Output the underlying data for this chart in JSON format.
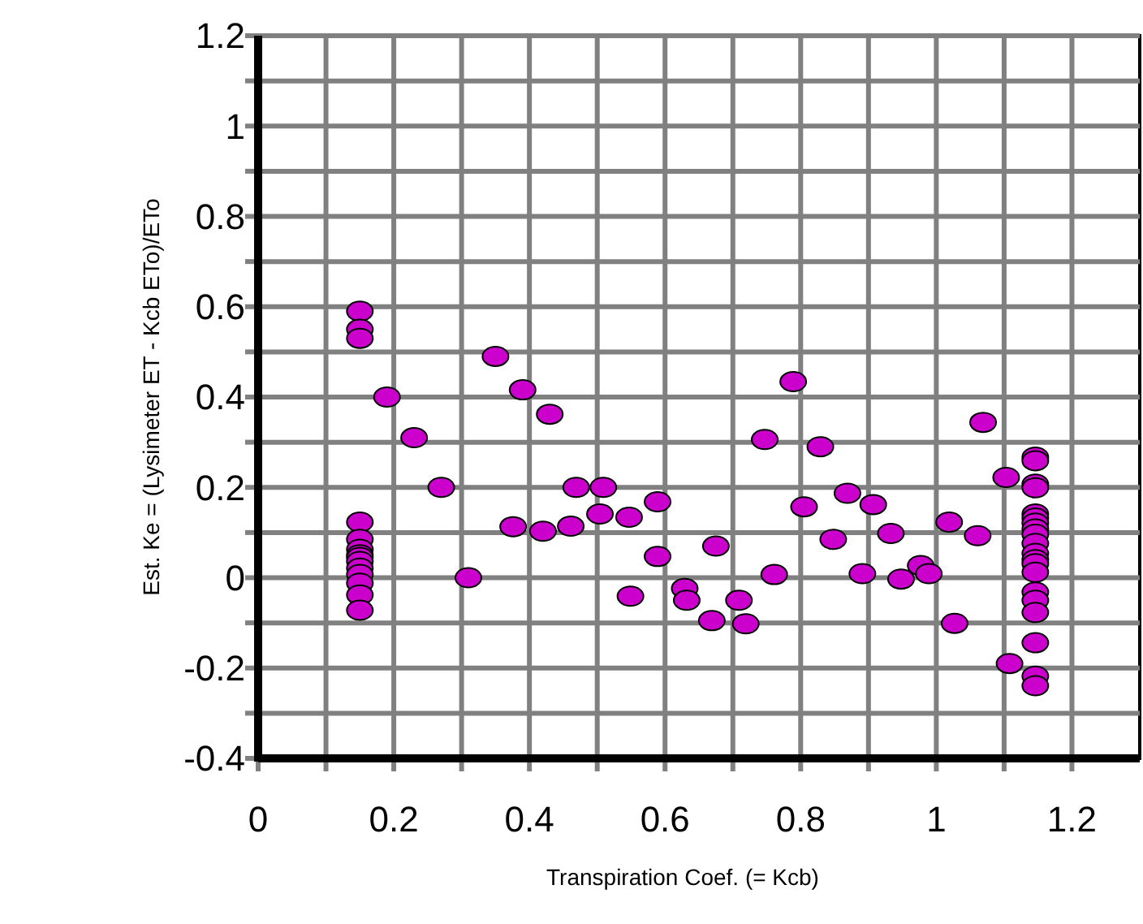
{
  "chart_data": {
    "type": "scatter",
    "xlabel": "Transpiration Coef. (= Kcb)",
    "ylabel": "Est. Ke = (Lysimeter ET - Kcb ETo)/ETo",
    "xlim": [
      0,
      1.3
    ],
    "ylim": [
      -0.4,
      1.2
    ],
    "xticks": [
      0,
      {
        "value": 0.1,
        "label": null
      },
      0.2,
      {
        "value": 0.3,
        "label": null
      },
      0.4,
      {
        "value": 0.5,
        "label": null
      },
      0.6,
      {
        "value": 0.7,
        "label": null
      },
      0.8,
      {
        "value": 0.9,
        "label": null
      },
      1,
      {
        "value": 1.1,
        "label": null
      },
      1.2
    ],
    "yticks": [
      -0.4,
      {
        "value": -0.3,
        "label": null
      },
      -0.2,
      {
        "value": -0.1,
        "label": null
      },
      0,
      {
        "value": 0.1,
        "label": null
      },
      0.2,
      {
        "value": 0.3,
        "label": null
      },
      0.4,
      {
        "value": 0.5,
        "label": null
      },
      0.6,
      {
        "value": 0.7,
        "label": null
      },
      0.8,
      {
        "value": 0.9,
        "label": null
      },
      1,
      {
        "value": 1.1,
        "label": null
      },
      1.2
    ],
    "grid": true,
    "marker": "circle",
    "series": [
      {
        "color": "#cc00cc",
        "x": [
          0.15,
          0.15,
          0.15,
          0.15,
          0.15,
          0.15,
          0.15,
          0.15,
          0.15,
          0.15,
          0.15,
          0.15,
          0.15,
          0.15,
          0.19,
          0.23,
          0.27,
          0.31,
          0.35,
          0.376,
          0.39,
          0.42,
          0.43,
          0.461,
          0.469,
          0.504,
          0.509,
          0.547,
          0.549,
          0.589,
          0.589,
          0.629,
          0.632,
          0.669,
          0.675,
          0.709,
          0.719,
          0.747,
          0.761,
          0.789,
          0.805,
          0.829,
          0.848,
          0.869,
          0.891,
          0.907,
          0.933,
          0.948,
          0.977,
          0.989,
          1.019,
          1.027,
          1.061,
          1.069,
          1.103,
          1.108,
          1.146,
          1.146,
          1.146,
          1.146,
          1.146,
          1.146,
          1.146,
          1.146,
          1.146,
          1.146,
          1.146,
          1.146,
          1.146,
          1.146,
          1.146,
          1.146,
          1.146,
          1.146,
          1.146,
          1.146
        ],
        "values": [
          0.59,
          0.55,
          0.53,
          0.123,
          0.085,
          0.063,
          0.051,
          0.045,
          0.036,
          0.021,
          0.007,
          -0.012,
          -0.038,
          -0.072,
          0.4,
          0.31,
          0.2,
          0,
          0.49,
          0.113,
          0.416,
          0.103,
          0.362,
          0.114,
          0.2,
          0.141,
          0.2,
          0.134,
          -0.041,
          0.168,
          0.047,
          -0.024,
          -0.05,
          -0.095,
          0.07,
          -0.05,
          -0.102,
          0.306,
          0.007,
          0.434,
          0.157,
          0.29,
          0.085,
          0.187,
          0.009,
          0.162,
          0.098,
          -0.003,
          0.027,
          0.009,
          0.123,
          -0.101,
          0.093,
          0.344,
          0.222,
          -0.19,
          0.267,
          0.259,
          0.207,
          0.199,
          0.141,
          0.132,
          0.121,
          0.108,
          0.096,
          0.076,
          0.054,
          0.04,
          0.031,
          0.012,
          -0.032,
          -0.05,
          -0.077,
          -0.144,
          -0.218,
          -0.239
        ]
      }
    ]
  }
}
